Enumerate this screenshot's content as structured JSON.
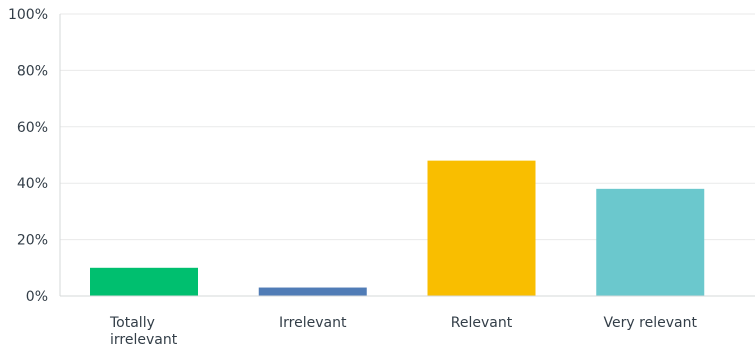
{
  "chart_data": {
    "type": "bar",
    "categories": [
      "Totally irrelevant",
      "Irrelevant",
      "Relevant",
      "Very relevant"
    ],
    "category_lines": [
      [
        "Totally",
        "irrelevant"
      ],
      [
        "Irrelevant"
      ],
      [
        "Relevant"
      ],
      [
        "Very relevant"
      ]
    ],
    "values": [
      10,
      3,
      48,
      38
    ],
    "colors": [
      "#00bf6f",
      "#507cb6",
      "#f9be00",
      "#6bc8cd"
    ],
    "ylim": [
      0,
      100
    ],
    "yticks": [
      0,
      20,
      40,
      60,
      80,
      100
    ],
    "ytick_labels": [
      "0%",
      "20%",
      "40%",
      "60%",
      "80%",
      "100%"
    ],
    "grid": true,
    "gridline_color": "#e9eaea",
    "axis_color": "#d6d8d9",
    "title": "",
    "xlabel": "",
    "ylabel": ""
  }
}
